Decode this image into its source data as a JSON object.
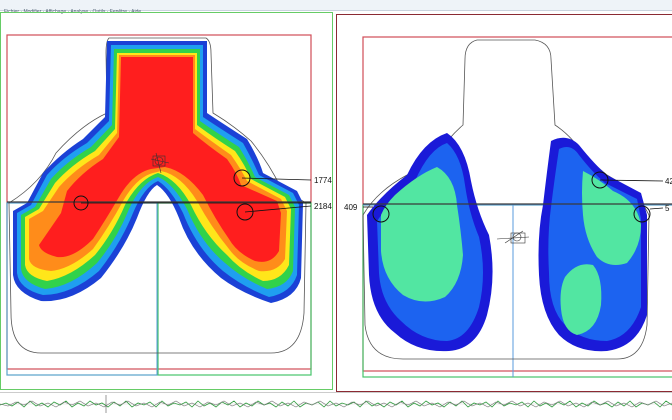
{
  "menubar": {
    "text": "Fichier · Modifier · Affichage · Analyse · Outils · Fenêtre · Aide"
  },
  "left_map": {
    "markers": [
      {
        "label": "1774"
      },
      {
        "label": "2184"
      }
    ],
    "colors": {
      "high": "#ff1e1e",
      "mid_high": "#ff8c1a",
      "mid": "#ffe61a",
      "low_mid": "#31d24a",
      "low": "#1f9ff0",
      "min": "#1b41d6"
    }
  },
  "right_map": {
    "markers": [
      {
        "label": "409"
      },
      {
        "label": "42"
      },
      {
        "label": "5"
      }
    ],
    "colors": {
      "dark": "#1a1ad8",
      "mid": "#1c63f0",
      "light": "#52e6a2"
    }
  },
  "frame_colors": {
    "red": "#d04c57",
    "green": "#46c46a",
    "blue": "#5a9bdd",
    "dark_red": "#8b2a33"
  }
}
